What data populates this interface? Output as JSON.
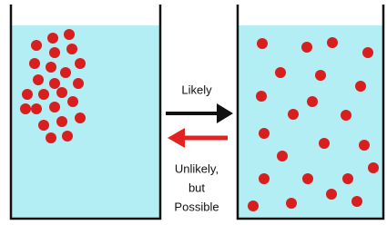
{
  "forward": {
    "label": "Likely"
  },
  "reverse": {
    "label_lines": [
      "Unlikely,",
      "but",
      "Possible"
    ]
  }
}
